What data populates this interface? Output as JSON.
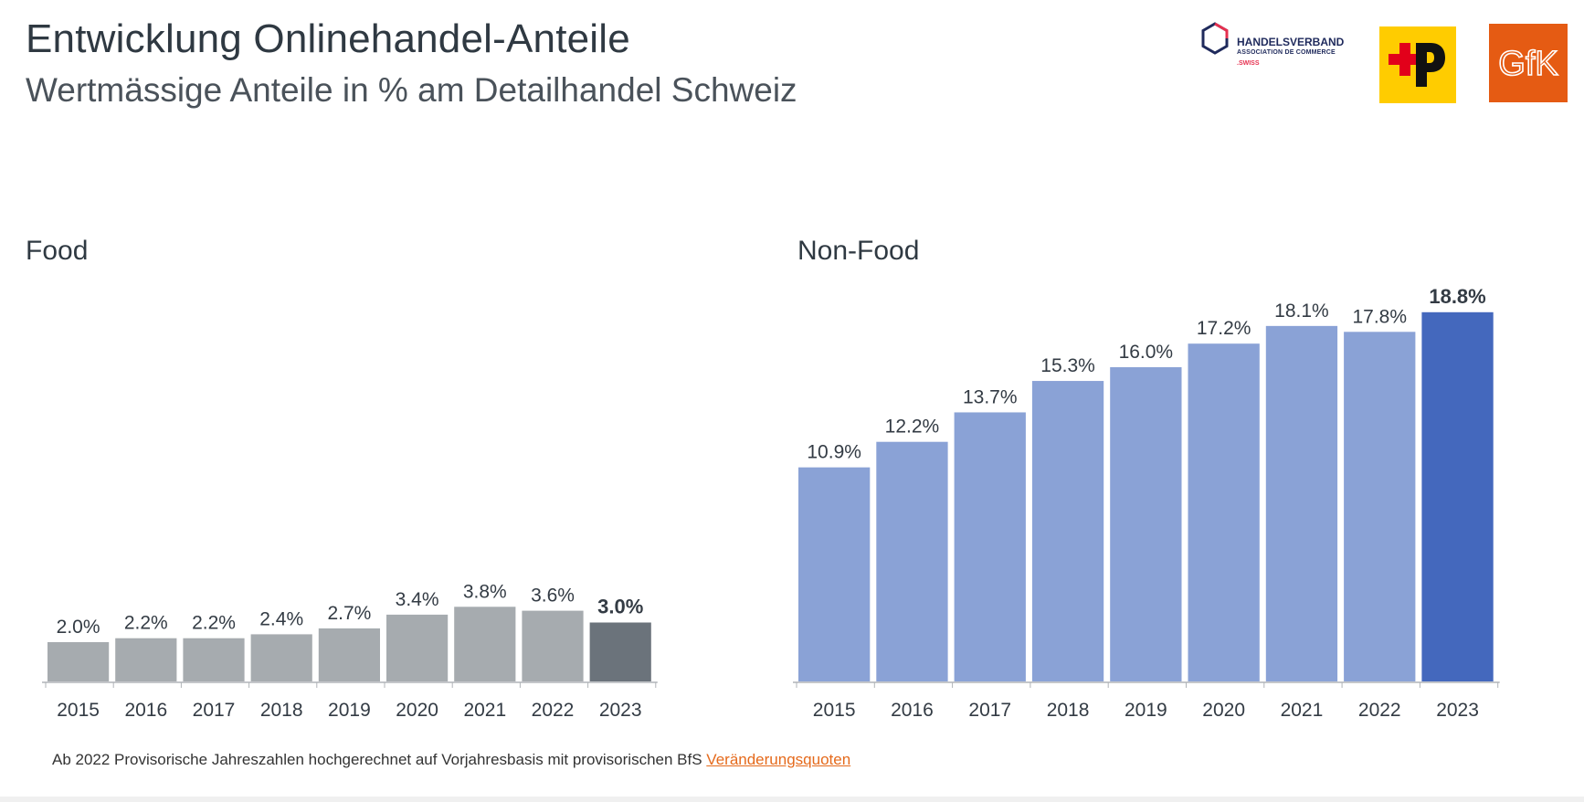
{
  "header": {
    "title": "Entwicklung Onlinehandel-Anteile",
    "subtitle": "Wertmässige Anteile in % am Detailhandel Schweiz"
  },
  "logos": {
    "handelsverband_line1": "HANDELSVERBAND",
    "handelsverband_line2": "ASSOCIATION DE COMMERCE",
    "handelsverband_line3": ".SWISS",
    "gfk": "GfK",
    "post_icon": "swiss-post-logo-icon",
    "handelsverband_icon": "hexagon-icon"
  },
  "chart_data": [
    {
      "type": "bar",
      "title": "Food",
      "categories": [
        "2015",
        "2016",
        "2017",
        "2018",
        "2019",
        "2020",
        "2021",
        "2022",
        "2023"
      ],
      "values": [
        2.0,
        2.2,
        2.2,
        2.4,
        2.7,
        3.4,
        3.8,
        3.6,
        3.0
      ],
      "labels": [
        "2.0%",
        "2.2%",
        "2.2%",
        "2.4%",
        "2.7%",
        "3.4%",
        "3.8%",
        "3.6%",
        "3.0%"
      ],
      "highlight_index": 8,
      "colors": {
        "bar": "#a6abaf",
        "highlight": "#6b737b"
      },
      "xlabel": "",
      "ylabel": "",
      "ylim": [
        0,
        20
      ]
    },
    {
      "type": "bar",
      "title": "Non-Food",
      "categories": [
        "2015",
        "2016",
        "2017",
        "2018",
        "2019",
        "2020",
        "2021",
        "2022",
        "2023"
      ],
      "values": [
        10.9,
        12.2,
        13.7,
        15.3,
        16.0,
        17.2,
        18.1,
        17.8,
        18.8
      ],
      "labels": [
        "10.9%",
        "12.2%",
        "13.7%",
        "15.3%",
        "16.0%",
        "17.2%",
        "18.1%",
        "17.8%",
        "18.8%"
      ],
      "highlight_index": 8,
      "colors": {
        "bar": "#8aa2d6",
        "highlight": "#4468bd"
      },
      "xlabel": "",
      "ylabel": "",
      "ylim": [
        0,
        20
      ]
    }
  ],
  "footnote": {
    "text": "Ab 2022 Provisorische Jahreszahlen hochgerechnet auf Vorjahresbasis mit provisorischen BfS",
    "link": "Veränderungsquoten"
  }
}
